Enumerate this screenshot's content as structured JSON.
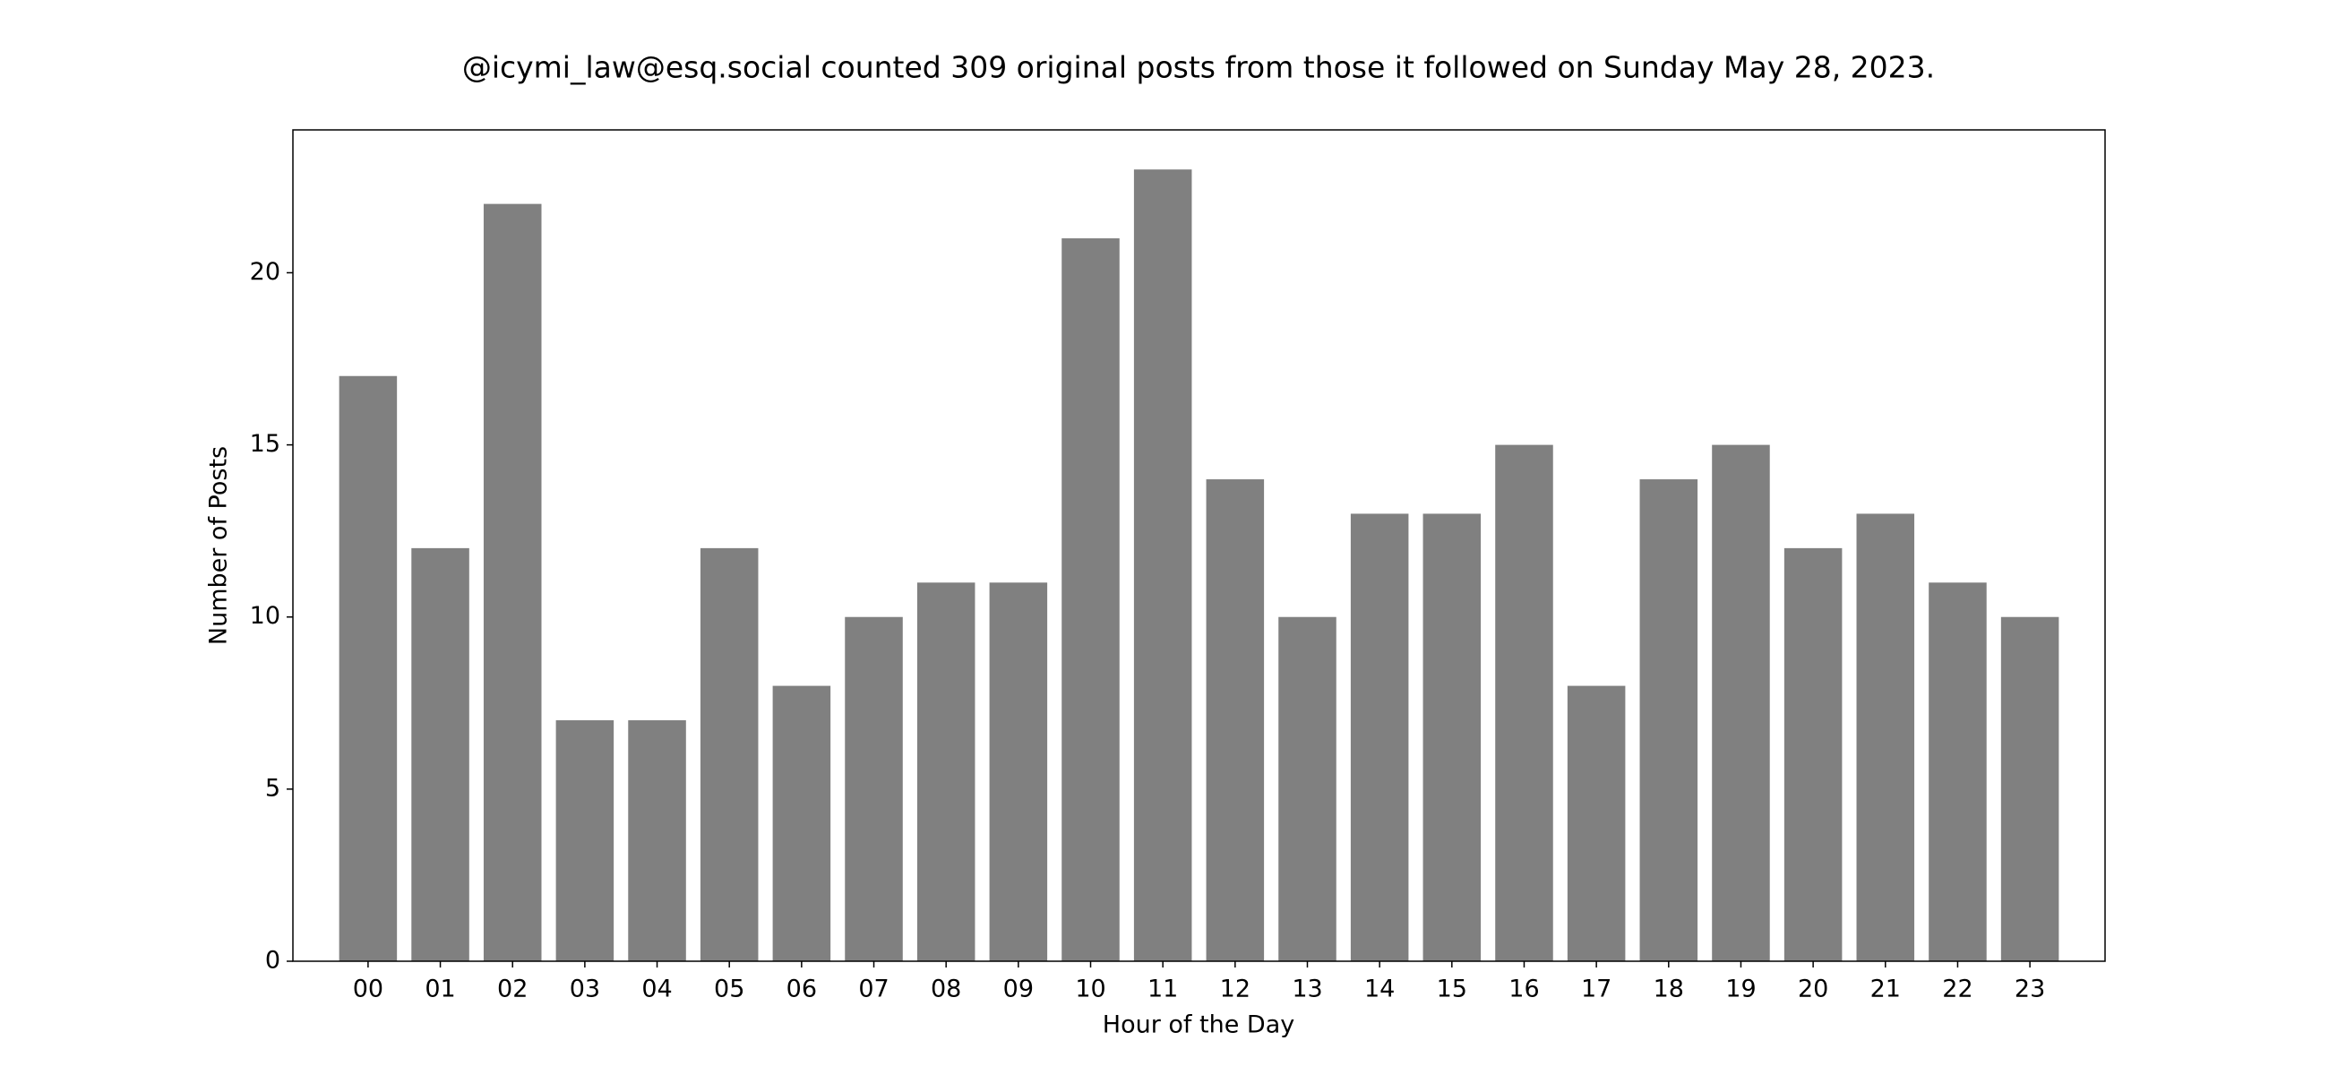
{
  "chart_data": {
    "type": "bar",
    "title": "@icymi_law@esq.social counted 309 original posts from those it followed on Sunday May 28, 2023.",
    "xlabel": "Hour of the Day",
    "ylabel": "Number of Posts",
    "categories": [
      "00",
      "01",
      "02",
      "03",
      "04",
      "05",
      "06",
      "07",
      "08",
      "09",
      "10",
      "11",
      "12",
      "13",
      "14",
      "15",
      "16",
      "17",
      "18",
      "19",
      "20",
      "21",
      "22",
      "23"
    ],
    "values": [
      17,
      12,
      22,
      7,
      7,
      12,
      8,
      10,
      11,
      11,
      21,
      23,
      14,
      10,
      13,
      13,
      15,
      8,
      14,
      15,
      12,
      13,
      11,
      10
    ],
    "color": "#808080",
    "ylim": [
      0,
      24.15
    ],
    "yticks": [
      0,
      5,
      10,
      15,
      20
    ]
  }
}
